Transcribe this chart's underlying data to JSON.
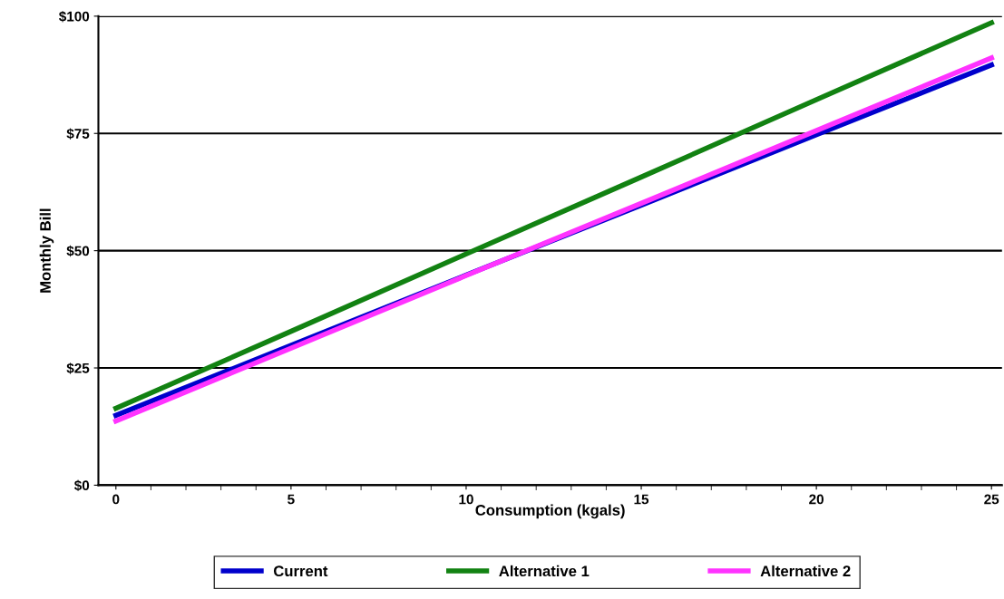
{
  "chart_data": {
    "type": "line",
    "xlabel": "Consumption (kgals)",
    "ylabel": "Monthly Bill",
    "x": [
      0,
      5,
      10,
      15,
      20,
      25
    ],
    "series": [
      {
        "name": "Current",
        "color": "#0000cc",
        "values": [
          14.9,
          29.8,
          44.8,
          59.7,
          74.7,
          89.6
        ]
      },
      {
        "name": "Alternative 1",
        "color": "#128212",
        "values": [
          16.4,
          32.8,
          49.3,
          65.7,
          82.2,
          98.6
        ]
      },
      {
        "name": "Alternative 2",
        "color": "#ff33ff",
        "values": [
          13.7,
          29.2,
          44.7,
          60.1,
          75.6,
          91.1
        ]
      }
    ],
    "xlim": [
      -0.5,
      25.3
    ],
    "xticks": [
      0,
      5,
      10,
      15,
      20,
      25
    ],
    "ylim": [
      0,
      100
    ],
    "yticks": [
      {
        "value": 0,
        "label": "$0"
      },
      {
        "value": 25,
        "label": "$25"
      },
      {
        "value": 50,
        "label": "$50"
      },
      {
        "value": 75,
        "label": "$75"
      },
      {
        "value": 100,
        "label": "$100"
      }
    ],
    "grid": "y",
    "legend": "bottom",
    "marker": "none",
    "line_style": "solid"
  }
}
